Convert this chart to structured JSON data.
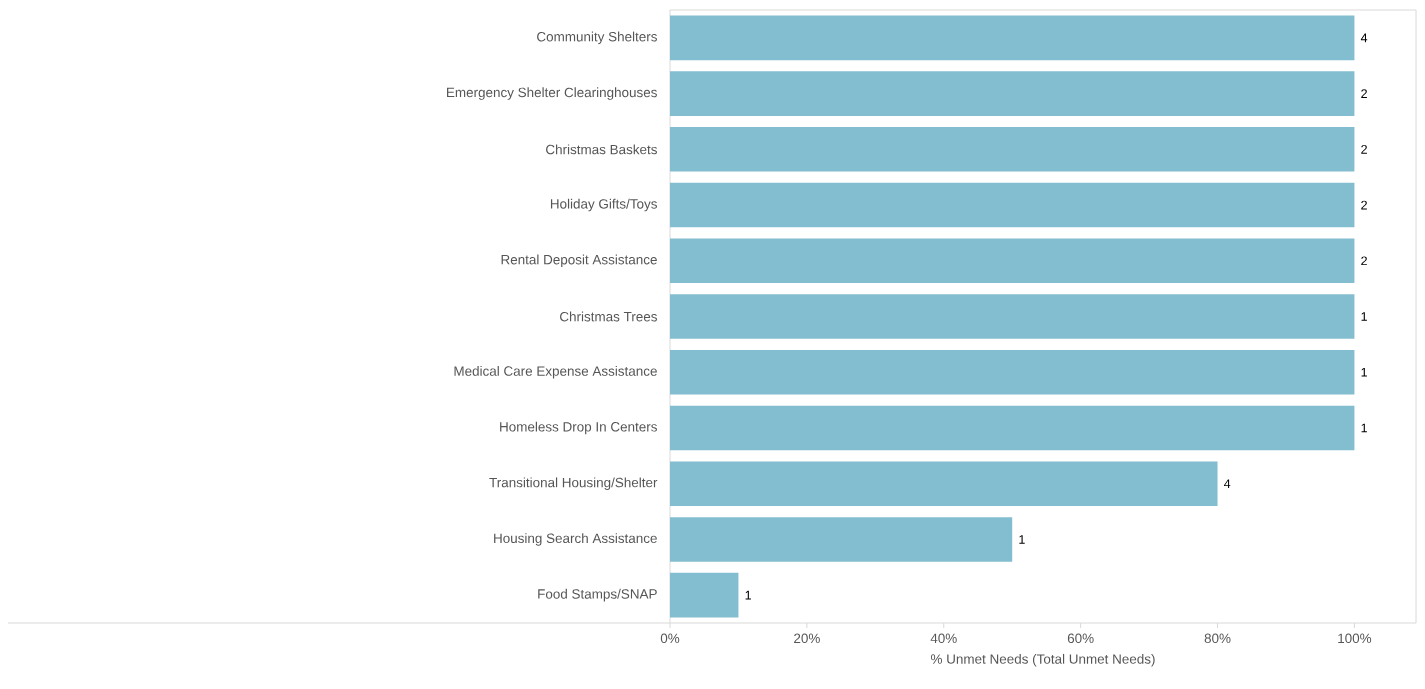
{
  "chart_data": {
    "type": "bar",
    "orientation": "horizontal",
    "xlabel": "% Unmet Needs (Total Unmet Needs)",
    "categories": [
      "Community Shelters",
      "Emergency Shelter Clearinghouses",
      "Christmas Baskets",
      "Holiday Gifts/Toys",
      "Rental Deposit Assistance",
      "Christmas Trees",
      "Medical Care Expense Assistance",
      "Homeless Drop In Centers",
      "Transitional Housing/Shelter",
      "Housing Search Assistance",
      "Food Stamps/SNAP"
    ],
    "values": [
      100,
      100,
      100,
      100,
      100,
      100,
      100,
      100,
      80,
      50,
      10
    ],
    "annotations": [
      {
        "text": "4",
        "x": 100,
        "y": "Community Shelters"
      },
      {
        "text": "2",
        "x": 100,
        "y": "Emergency Shelter Clearinghouses"
      },
      {
        "text": "2",
        "x": 100,
        "y": "Christmas Baskets"
      },
      {
        "text": "2",
        "x": 100,
        "y": "Holiday Gifts/Toys"
      },
      {
        "text": "2",
        "x": 100,
        "y": "Rental Deposit Assistance"
      },
      {
        "text": "1",
        "x": 100,
        "y": "Christmas Trees"
      },
      {
        "text": "1",
        "x": 100,
        "y": "Medical Care Expense Assistance"
      },
      {
        "text": "1",
        "x": 100,
        "y": "Homeless Drop In Centers"
      },
      {
        "text": "4",
        "x": 80,
        "y": "Transitional Housing/Shelter"
      },
      {
        "text": "1",
        "x": 50,
        "y": "Housing Search Assistance"
      },
      {
        "text": "1",
        "x": 10,
        "y": "Food Stamps/SNAP"
      }
    ],
    "color": "#83bed0",
    "xlim": [
      0,
      109
    ],
    "xticks": [
      {
        "value": 0,
        "label": "0%"
      },
      {
        "value": 20,
        "label": "20%"
      },
      {
        "value": 40,
        "label": "40%"
      },
      {
        "value": 60,
        "label": "60%"
      },
      {
        "value": 80,
        "label": "80%"
      },
      {
        "value": 100,
        "label": "100%"
      }
    ]
  }
}
